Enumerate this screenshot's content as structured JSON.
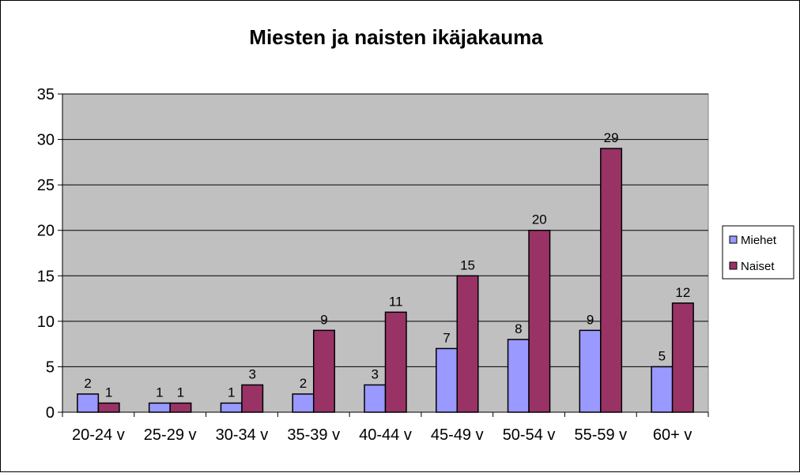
{
  "chart_data": {
    "type": "bar",
    "title": "Miesten ja naisten ikäjakauma",
    "categories": [
      "20-24 v",
      "25-29 v",
      "30-34 v",
      "35-39 v",
      "40-44 v",
      "45-49 v",
      "50-54 v",
      "55-59 v",
      "60+ v"
    ],
    "series": [
      {
        "name": "Miehet",
        "values": [
          2,
          1,
          1,
          2,
          3,
          7,
          8,
          9,
          5
        ],
        "color": "#9999ff"
      },
      {
        "name": "Naiset",
        "values": [
          1,
          1,
          3,
          9,
          11,
          15,
          20,
          29,
          12
        ],
        "color": "#993366"
      }
    ],
    "ylim": [
      0,
      35
    ],
    "yticks": [
      0,
      5,
      10,
      15,
      20,
      25,
      30,
      35
    ],
    "grid": true,
    "plot_background": "#c0c0c0",
    "legend_position": "right"
  }
}
